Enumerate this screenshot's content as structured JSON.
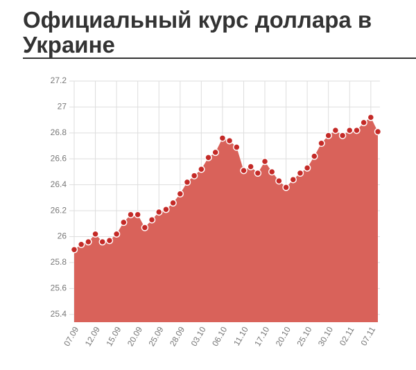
{
  "chart_data": {
    "type": "area",
    "title_lines": [
      "Официальный курс доллара в",
      "Украине"
    ],
    "categories": [
      "07.09",
      null,
      null,
      "12.09",
      null,
      null,
      "15.09",
      null,
      null,
      "20.09",
      null,
      null,
      "25.09",
      null,
      null,
      "28.09",
      null,
      null,
      "03.10",
      null,
      null,
      "06.10",
      null,
      null,
      "11.10",
      null,
      null,
      "17.10",
      null,
      null,
      "20.10",
      null,
      null,
      "25.10",
      null,
      null,
      "30.10",
      null,
      null,
      "02.11",
      null,
      null,
      "07.11",
      null
    ],
    "values": [
      25.9,
      25.94,
      25.96,
      26.02,
      25.96,
      25.97,
      26.02,
      26.11,
      26.17,
      26.17,
      26.07,
      26.13,
      26.19,
      26.21,
      26.26,
      26.33,
      26.42,
      26.47,
      26.52,
      26.61,
      26.65,
      26.76,
      26.74,
      26.69,
      26.51,
      26.54,
      26.49,
      26.58,
      26.5,
      26.43,
      26.38,
      26.44,
      26.49,
      26.53,
      26.62,
      26.72,
      26.78,
      26.82,
      26.78,
      26.82,
      26.82,
      26.88,
      26.92,
      26.81
    ],
    "color": "#d9625a",
    "marker_color": "#c42a27",
    "ylim": [
      25.34,
      27.2
    ],
    "yticks": [
      25.4,
      25.6,
      25.8,
      26,
      26.2,
      26.4,
      26.6,
      26.8,
      27,
      27.2
    ],
    "grid": true
  }
}
